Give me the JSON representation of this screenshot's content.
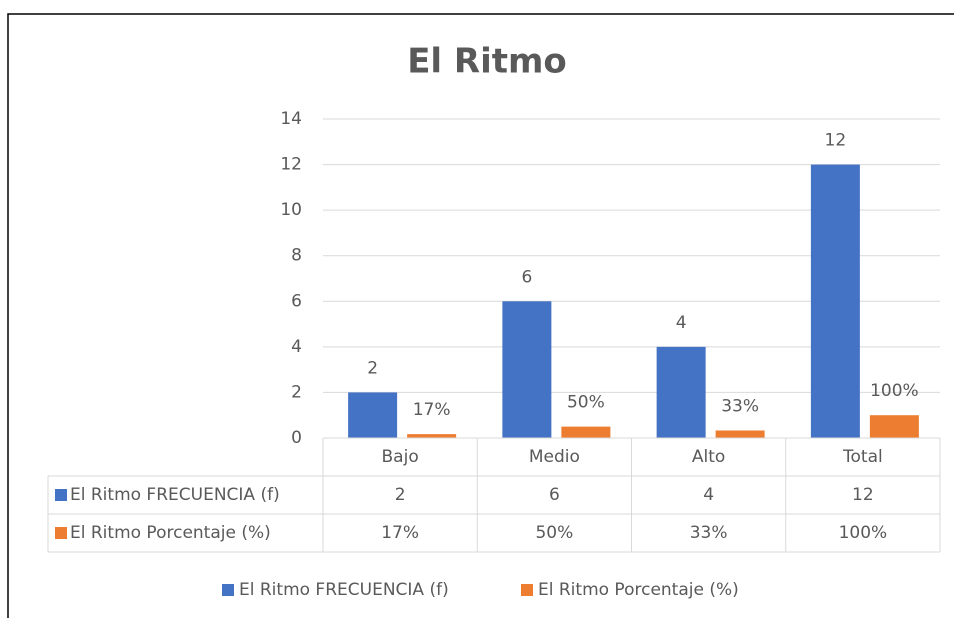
{
  "chart_data": {
    "type": "bar",
    "title": "El Ritmo",
    "categories": [
      "Bajo",
      "Medio",
      "Alto",
      "Total"
    ],
    "series": [
      {
        "name": "El Ritmo FRECUENCIA (f)",
        "color": "#4472c4",
        "values": [
          2,
          6,
          4,
          12
        ]
      },
      {
        "name": "El Ritmo Porcentaje (%)",
        "color": "#ed7d31",
        "values": [
          0.17,
          0.5,
          0.33,
          1
        ],
        "value_labels": [
          "17%",
          "50%",
          "33%",
          "100%"
        ]
      }
    ],
    "ylim": [
      0,
      14
    ],
    "yticks": [
      0,
      2,
      4,
      6,
      8,
      10,
      12,
      14
    ],
    "grid": true,
    "legend": "bottom",
    "data_table": true
  }
}
